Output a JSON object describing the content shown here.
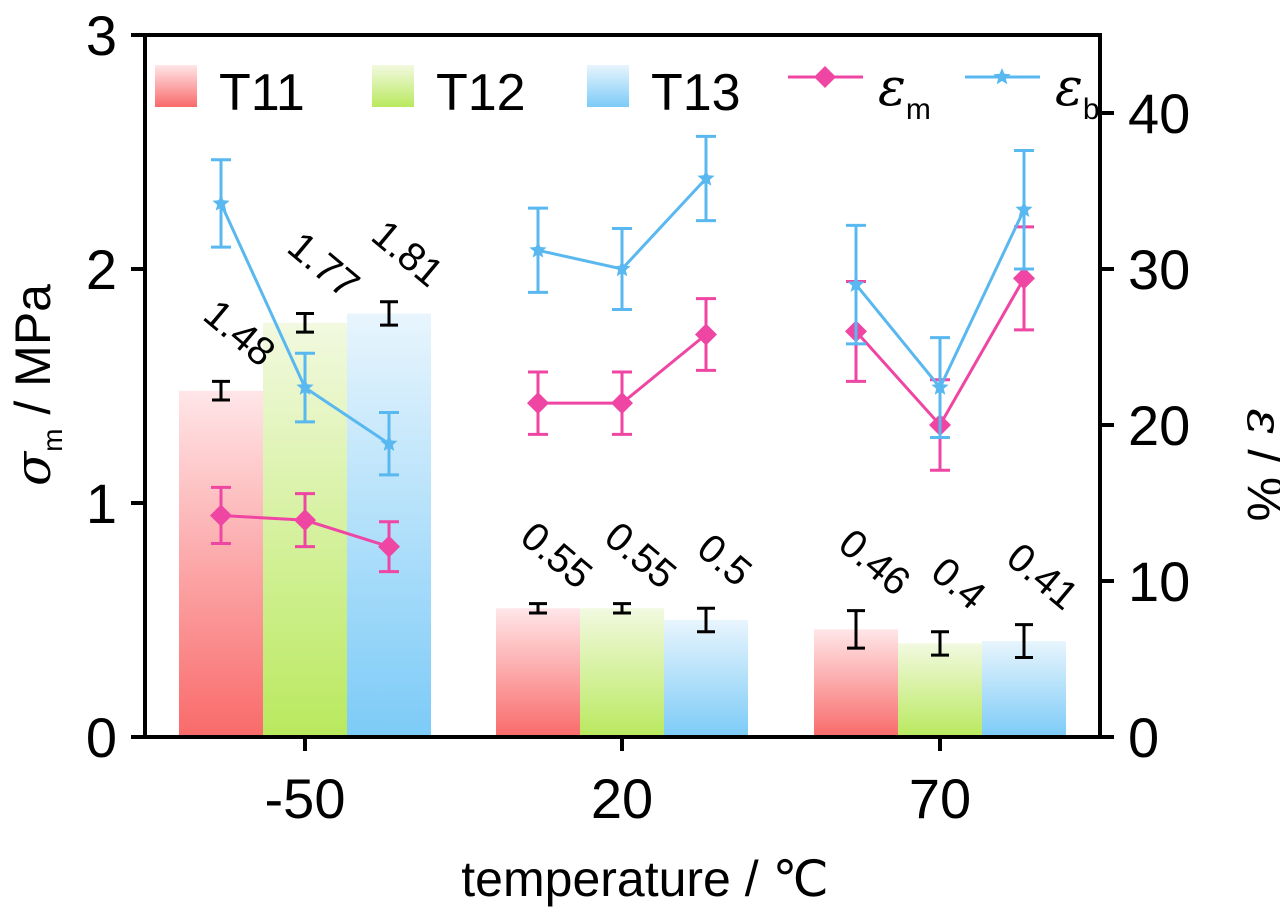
{
  "chart_data": {
    "type": "bar",
    "categories": [
      "-50",
      "20",
      "70"
    ],
    "x_label": "temperature / ℃",
    "y_left": {
      "label_symbol": "σ",
      "label_subscript": "m",
      "label_unit": " / MPa",
      "range": [
        0,
        3
      ],
      "ticks": [
        "0",
        "1",
        "2",
        "3"
      ]
    },
    "y_right": {
      "label_symbol": "ε",
      "label_unit": " / %",
      "range": [
        0,
        45
      ],
      "ticks": [
        "0",
        "10",
        "20",
        "30",
        "40"
      ]
    },
    "bar_series": [
      {
        "name": "T11",
        "color_top": "#ffe6e8",
        "color_bottom": "#f96a6a",
        "values": [
          1.48,
          0.55,
          0.46
        ],
        "errors": [
          0.04,
          0.02,
          0.08
        ],
        "labels": [
          "1.48",
          "0.55",
          "0.46"
        ]
      },
      {
        "name": "T12",
        "color_top": "#f2f9e0",
        "color_bottom": "#b9e95e",
        "values": [
          1.77,
          0.55,
          0.4
        ],
        "errors": [
          0.04,
          0.02,
          0.05
        ],
        "labels": [
          "1.77",
          "0.55",
          "0.4"
        ]
      },
      {
        "name": "T13",
        "color_top": "#e8f5fd",
        "color_bottom": "#7ccbf7",
        "values": [
          1.81,
          0.5,
          0.41
        ],
        "errors": [
          0.05,
          0.05,
          0.07
        ],
        "labels": [
          "1.81",
          "0.5",
          "0.41"
        ]
      }
    ],
    "line_series": [
      {
        "name_symbol": "ε",
        "name_subscript": "m",
        "color": "#ef45a3",
        "marker": "diamond",
        "groups": [
          {
            "values": [
              14.2,
              13.9,
              12.2
            ],
            "errors": [
              1.8,
              1.7,
              1.6
            ]
          },
          {
            "values": [
              21.4,
              21.4,
              25.8
            ],
            "errors": [
              2.0,
              2.0,
              2.3
            ]
          },
          {
            "values": [
              26.0,
              20.0,
              29.4
            ],
            "errors": [
              3.2,
              2.9,
              3.3
            ]
          }
        ]
      },
      {
        "name_symbol": "ε",
        "name_subscript": "b",
        "color": "#58b8ef",
        "marker": "star",
        "groups": [
          {
            "values": [
              34.2,
              22.4,
              18.8
            ],
            "errors": [
              2.8,
              2.2,
              2.0
            ]
          },
          {
            "values": [
              31.2,
              30.0,
              35.8
            ],
            "errors": [
              2.7,
              2.6,
              2.7
            ]
          },
          {
            "values": [
              29.0,
              22.4,
              33.8
            ],
            "errors": [
              3.8,
              3.2,
              3.8
            ]
          }
        ]
      }
    ],
    "legend_position": "top",
    "grid": false
  }
}
